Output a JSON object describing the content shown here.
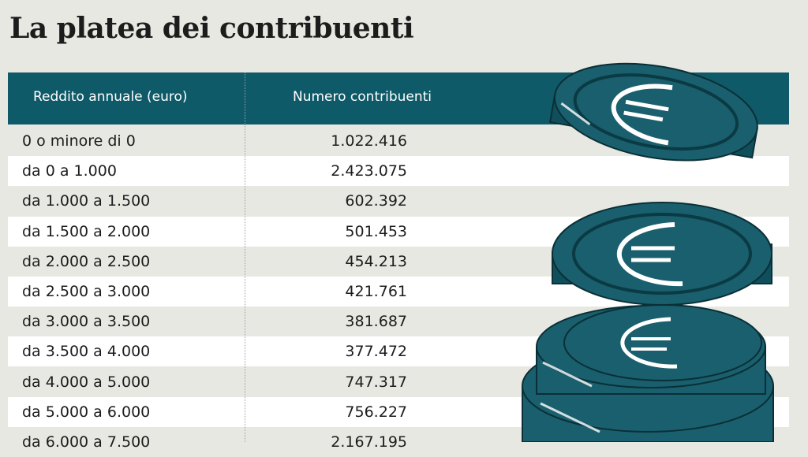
{
  "title": "La platea dei contribuenti",
  "colors": {
    "header": "#0f5a68",
    "coin": "#1a5f6d",
    "background": "#e8e8e3"
  },
  "illustration": "euro-coin-stack",
  "chart_data": {
    "type": "table",
    "title": "La platea dei contribuenti",
    "columns": [
      "Reddito annuale (euro)",
      "Numero contribuenti"
    ],
    "rows": [
      [
        "0 o minore di 0",
        "1.022.416"
      ],
      [
        "da 0 a 1.000",
        "2.423.075"
      ],
      [
        "da 1.000 a 1.500",
        "602.392"
      ],
      [
        "da 1.500 a 2.000",
        "501.453"
      ],
      [
        "da 2.000 a 2.500",
        "454.213"
      ],
      [
        "da 2.500 a 3.000",
        "421.761"
      ],
      [
        "da 3.000 a 3.500",
        "381.687"
      ],
      [
        "da 3.500 a 4.000",
        "377.472"
      ],
      [
        "da 4.000 a 5.000",
        "747.317"
      ],
      [
        "da 5.000 a 6.000",
        "756.227"
      ],
      [
        "da 6.000 a 7.500",
        "2.167.195"
      ]
    ]
  }
}
